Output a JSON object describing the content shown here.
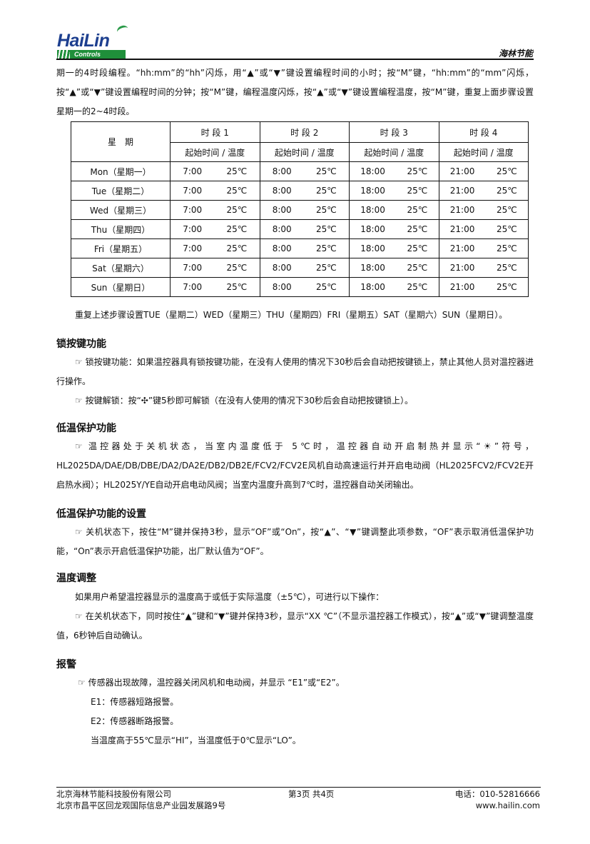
{
  "header": {
    "logo_text": "HaiLin",
    "logo_sub": "Controls",
    "brand": "海林节能"
  },
  "intro": "期一的4时段编程。“hh:mm”的“hh”闪烁，用“▲”或“▼”键设置编程时间的小时；按“M”键，“hh:mm”的“mm”闪烁，按“▲”或“▼”键设置编程时间的分钟；按“M”键，编程温度闪烁，按“▲”或“▼”键设置编程温度，按“M”键，重复上面步骤设置星期一的2~4时段。",
  "table": {
    "day_header": "星　期",
    "periods": [
      "时 段 1",
      "时 段 2",
      "时 段 3",
      "时 段 4"
    ],
    "sub_header": "起始时间 / 温度",
    "rows": [
      {
        "day": "Mon（星期一）",
        "cells": [
          [
            "7:00",
            "25℃"
          ],
          [
            "8:00",
            "25℃"
          ],
          [
            "18:00",
            "25℃"
          ],
          [
            "21:00",
            "25℃"
          ]
        ]
      },
      {
        "day": "Tue（星期二）",
        "cells": [
          [
            "7:00",
            "25℃"
          ],
          [
            "8:00",
            "25℃"
          ],
          [
            "18:00",
            "25℃"
          ],
          [
            "21:00",
            "25℃"
          ]
        ]
      },
      {
        "day": "Wed（星期三）",
        "cells": [
          [
            "7:00",
            "25℃"
          ],
          [
            "8:00",
            "25℃"
          ],
          [
            "18:00",
            "25℃"
          ],
          [
            "21:00",
            "25℃"
          ]
        ]
      },
      {
        "day": "Thu（星期四）",
        "cells": [
          [
            "7:00",
            "25℃"
          ],
          [
            "8:00",
            "25℃"
          ],
          [
            "18:00",
            "25℃"
          ],
          [
            "21:00",
            "25℃"
          ]
        ]
      },
      {
        "day": "Fri（星期五）",
        "cells": [
          [
            "7:00",
            "25℃"
          ],
          [
            "8:00",
            "25℃"
          ],
          [
            "18:00",
            "25℃"
          ],
          [
            "21:00",
            "25℃"
          ]
        ]
      },
      {
        "day": "Sat（星期六）",
        "cells": [
          [
            "7:00",
            "25℃"
          ],
          [
            "8:00",
            "25℃"
          ],
          [
            "18:00",
            "25℃"
          ],
          [
            "21:00",
            "25℃"
          ]
        ]
      },
      {
        "day": "Sun（星期日）",
        "cells": [
          [
            "7:00",
            "25℃"
          ],
          [
            "8:00",
            "25℃"
          ],
          [
            "18:00",
            "25℃"
          ],
          [
            "21:00",
            "25℃"
          ]
        ]
      }
    ]
  },
  "repeat_note": "重复上述步骤设置TUE（星期二）WED（星期三）THU（星期四）FRI（星期五）SAT（星期六）SUN（星期日）。",
  "lock": {
    "title": "锁按键功能",
    "p1": "☞ 锁按键功能：如果温控器具有锁按键功能，在没有人使用的情况下30秒后会自动把按键锁上，禁止其他人员对温控器进行操作。",
    "p2": "☞ 按键解锁：按“✣”键5秒即可解锁（在没有人使用的情况下30秒后会自动把按键锁上）。"
  },
  "low_temp": {
    "title": "低温保护功能",
    "p1": "☞ 温控器处于关机状态，当室内温度低于 5℃时，温控器自动开启制热并显示“☀”符号，HL2025DA/DAE/DB/DBE/DA2/DA2E/DB2/DB2E/FCV2/FCV2E风机自动高速运行并开启电动阀（HL2025FCV2/FCV2E开启热水阀）；HL2025Y/YE自动开启电动风阀；当室内温度升高到7℃时，温控器自动关闭输出。"
  },
  "low_temp_setting": {
    "title": "低温保护功能的设置",
    "p1": "☞ 关机状态下，按住“M”键并保持3秒，显示“OF”或“On”，按“▲”、“▼”键调整此项参数，“OF”表示取消低温保护功能，“On”表示开启低温保护功能，出厂默认值为“OF”。"
  },
  "temp_adjust": {
    "title": "温度调整",
    "p1": "如果用户希望温控器显示的温度高于或低于实际温度（±5℃），可进行以下操作：",
    "p2": "☞ 在关机状态下，同时按住“▲”键和“▼”键并保持3秒，显示“XX ℃”（不显示温控器工作模式），按“▲”或“▼”键调整温度值，6秒钟后自动确认。"
  },
  "alarm": {
    "title": "报警",
    "p1": "☞ 传感器出现故障，温控器关闭风机和电动阀，并显示 “E1”或“E2”。",
    "e1": "E1：传感器短路报警。",
    "e2": "E2：传感器断路报警。",
    "hilo": "当温度高于55℃显示“HI”，当温度低于0℃显示“LO”。"
  },
  "footer": {
    "company": "北京海林节能科技股份有限公司",
    "address": "北京市昌平区回龙观国际信息产业园发展路9号",
    "page": "第3页 共4页",
    "phone": "电话：010-52816666",
    "website": "www.hailin.com"
  }
}
